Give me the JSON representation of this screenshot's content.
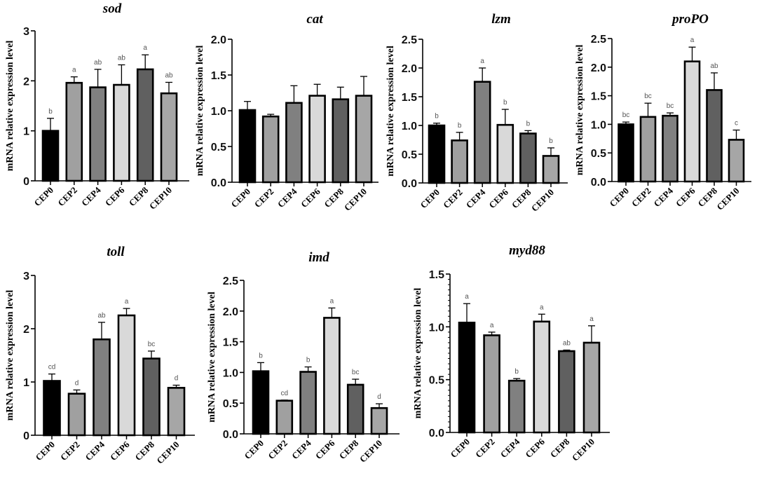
{
  "chart_data": [
    {
      "type": "bar",
      "title": "sod",
      "xlabel": "",
      "ylabel": "mRNA relative  expression level",
      "ylim": [
        0,
        3
      ],
      "yticks": [
        "0",
        "1",
        "2",
        "3"
      ],
      "ytick_values": [
        0,
        1,
        2,
        3
      ],
      "categories": [
        "CEP0",
        "CEP2",
        "CEP4",
        "CEP6",
        "CEP8",
        "CEP10"
      ],
      "values": [
        1.0,
        1.96,
        1.87,
        1.92,
        2.23,
        1.75
      ],
      "error_upper": [
        1.25,
        2.08,
        2.23,
        2.32,
        2.52,
        1.97
      ],
      "significance": [
        "b",
        "a",
        "ab",
        "ab",
        "a",
        "ab"
      ],
      "minor_ticks": false
    },
    {
      "type": "bar",
      "title": "cat",
      "xlabel": "",
      "ylabel": "mRNA relative  expression level",
      "ylim": [
        0,
        2
      ],
      "yticks": [
        "0.0",
        "0.5",
        "1.0",
        "1.5",
        "2.0"
      ],
      "ytick_values": [
        0,
        0.5,
        1,
        1.5,
        2
      ],
      "categories": [
        "CEP0",
        "CEP2",
        "CEP4",
        "CEP6",
        "CEP8",
        "CEP10"
      ],
      "values": [
        1.01,
        0.92,
        1.11,
        1.21,
        1.16,
        1.21
      ],
      "error_upper": [
        1.13,
        0.95,
        1.35,
        1.37,
        1.33,
        1.48
      ],
      "significance": [
        "",
        "",
        "",
        "",
        "",
        ""
      ],
      "minor_ticks": false
    },
    {
      "type": "bar",
      "title": "lzm",
      "xlabel": "",
      "ylabel": "mRNA relative  expression level",
      "ylim": [
        0,
        2.5
      ],
      "yticks": [
        "0.0",
        "0.5",
        "1.0",
        "1.5",
        "2.0",
        "2.5"
      ],
      "ytick_values": [
        0,
        0.5,
        1,
        1.5,
        2,
        2.5
      ],
      "categories": [
        "CEP0",
        "CEP2",
        "CEP4",
        "CEP6",
        "CEP8",
        "CEP10"
      ],
      "values": [
        1.0,
        0.74,
        1.76,
        1.01,
        0.86,
        0.47
      ],
      "error_upper": [
        1.04,
        0.88,
        2.0,
        1.28,
        0.91,
        0.61
      ],
      "significance": [
        "b",
        "b",
        "a",
        "b",
        "b",
        "b"
      ],
      "minor_ticks": false
    },
    {
      "type": "bar",
      "title": "proPO",
      "xlabel": "",
      "ylabel": "mRNA relative  expression level",
      "ylim": [
        0,
        2.5
      ],
      "yticks": [
        "0.0",
        "0.5",
        "1.0",
        "1.5",
        "2.0",
        "2.5"
      ],
      "ytick_values": [
        0,
        0.5,
        1,
        1.5,
        2,
        2.5
      ],
      "categories": [
        "CEP0",
        "CEP2",
        "CEP4",
        "CEP6",
        "CEP8",
        "CEP10"
      ],
      "values": [
        1.0,
        1.13,
        1.15,
        2.1,
        1.6,
        0.73
      ],
      "error_upper": [
        1.04,
        1.37,
        1.2,
        2.35,
        1.9,
        0.9
      ],
      "significance": [
        "bc",
        "bc",
        "bc",
        "a",
        "ab",
        "c"
      ],
      "minor_ticks": false
    },
    {
      "type": "bar",
      "title": "toll",
      "xlabel": "",
      "ylabel": "mRNA relative  expression level",
      "ylim": [
        0,
        3
      ],
      "yticks": [
        "0",
        "1",
        "2",
        "3"
      ],
      "ytick_values": [
        0,
        1,
        2,
        3
      ],
      "categories": [
        "CEP0",
        "CEP2",
        "CEP4",
        "CEP6",
        "CEP8",
        "CEP10"
      ],
      "values": [
        1.02,
        0.78,
        1.8,
        2.25,
        1.44,
        0.89
      ],
      "error_upper": [
        1.15,
        0.85,
        2.12,
        2.38,
        1.58,
        0.94
      ],
      "significance": [
        "cd",
        "d",
        "ab",
        "a",
        "bc",
        "d"
      ],
      "minor_ticks": false
    },
    {
      "type": "bar",
      "title": "imd",
      "xlabel": "",
      "ylabel": "mRNA relative  expression level",
      "ylim": [
        0,
        2.5
      ],
      "yticks": [
        "0.0",
        "0.5",
        "1.0",
        "1.5",
        "2.0",
        "2.5"
      ],
      "ytick_values": [
        0,
        0.5,
        1,
        1.5,
        2,
        2.5
      ],
      "categories": [
        "CEP0",
        "CEP2",
        "CEP4",
        "CEP6",
        "CEP8",
        "CEP10"
      ],
      "values": [
        1.02,
        0.54,
        1.01,
        1.89,
        0.8,
        0.42
      ],
      "error_upper": [
        1.16,
        0.55,
        1.09,
        2.05,
        0.89,
        0.49
      ],
      "significance": [
        "b",
        "cd",
        "b",
        "a",
        "bc",
        "d"
      ],
      "minor_ticks": false
    },
    {
      "type": "bar",
      "title": "myd88",
      "xlabel": "",
      "ylabel": "mRNA relative  expression level",
      "ylim": [
        0,
        1.5
      ],
      "yticks": [
        "0.0",
        "0.5",
        "1.0",
        "1.5"
      ],
      "ytick_values": [
        0,
        0.5,
        1,
        1.5
      ],
      "categories": [
        "CEP0",
        "CEP2",
        "CEP4",
        "CEP6",
        "CEP8",
        "CEP10"
      ],
      "values": [
        1.04,
        0.92,
        0.49,
        1.05,
        0.77,
        0.85
      ],
      "error_upper": [
        1.22,
        0.95,
        0.51,
        1.12,
        0.78,
        1.01
      ],
      "significance": [
        "a",
        "a",
        "b",
        "a",
        "ab",
        "a"
      ],
      "minor_ticks": true
    }
  ],
  "style": {
    "bar_colors": [
      "#000000",
      "#a0a0a0",
      "#808080",
      "#d9d9d9",
      "#606060",
      "#a6a6a6"
    ],
    "outline_color": "#000000"
  }
}
